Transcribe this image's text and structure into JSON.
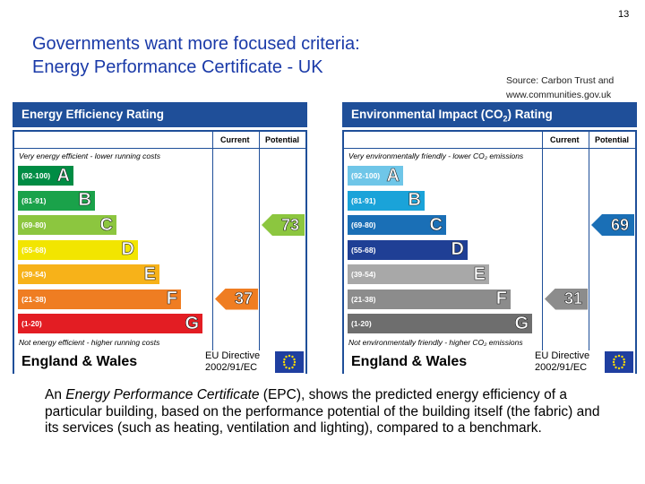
{
  "page_number": "13",
  "title": {
    "line1": "Governments want more focused criteria:",
    "line2": "Energy Performance Certificate - UK"
  },
  "source": {
    "line1": "Source: Carbon Trust and",
    "line2": "www.communities.gov.uk"
  },
  "energy": {
    "heading": "Energy Efficiency Rating",
    "current_label": "Current",
    "potential_label": "Potential",
    "top_text": "Very energy efficient - lower running costs",
    "bottom_text": "Not energy efficient - higher running costs",
    "bands": [
      {
        "range": "(92-100)",
        "letter": "A",
        "color": "#008c44"
      },
      {
        "range": "(81-91)",
        "letter": "B",
        "color": "#1aa24a"
      },
      {
        "range": "(69-80)",
        "letter": "C",
        "color": "#8cc63f"
      },
      {
        "range": "(55-68)",
        "letter": "D",
        "color": "#f2e500"
      },
      {
        "range": "(39-54)",
        "letter": "E",
        "color": "#f7b219"
      },
      {
        "range": "(21-38)",
        "letter": "F",
        "color": "#ef7d22"
      },
      {
        "range": "(1-20)",
        "letter": "G",
        "color": "#e31d23"
      }
    ],
    "current_value": "37",
    "current_color": "#ef7d22",
    "potential_value": "73",
    "potential_color": "#8cc63f",
    "footer_region": "England & Wales",
    "directive_line1": "EU Directive",
    "directive_line2": "2002/91/EC"
  },
  "environment": {
    "heading_prefix": "Environmental Impact (CO",
    "heading_sub": "2",
    "heading_suffix": ") Rating",
    "current_label": "Current",
    "potential_label": "Potential",
    "top_text": "Very environmentally friendly - lower CO₂ emissions",
    "bottom_text": "Not environmentally friendly - higher CO₂ emissions",
    "bands": [
      {
        "range": "(92-100)",
        "letter": "A",
        "color": "#6fc6e8"
      },
      {
        "range": "(81-91)",
        "letter": "B",
        "color": "#1aa3d9"
      },
      {
        "range": "(69-80)",
        "letter": "C",
        "color": "#1a6fb6"
      },
      {
        "range": "(55-68)",
        "letter": "D",
        "color": "#1f3f95"
      },
      {
        "range": "(39-54)",
        "letter": "E",
        "color": "#a8a8a8"
      },
      {
        "range": "(21-38)",
        "letter": "F",
        "color": "#8c8c8c"
      },
      {
        "range": "(1-20)",
        "letter": "G",
        "color": "#6e6e6e"
      }
    ],
    "current_value": "31",
    "current_color": "#8c8c8c",
    "potential_value": "69",
    "potential_color": "#1a6fb6",
    "footer_region": "England & Wales",
    "directive_line1": "EU Directive",
    "directive_line2": "2002/91/EC"
  },
  "description": {
    "prefix": "An ",
    "emphasis": "Energy Performance Certificate",
    "rest": " (EPC), shows the predicted energy efficiency of a particular building, based on the performance potential of the building itself (the fabric) and its services (such as heating, ventilation and lighting), compared to a benchmark."
  }
}
